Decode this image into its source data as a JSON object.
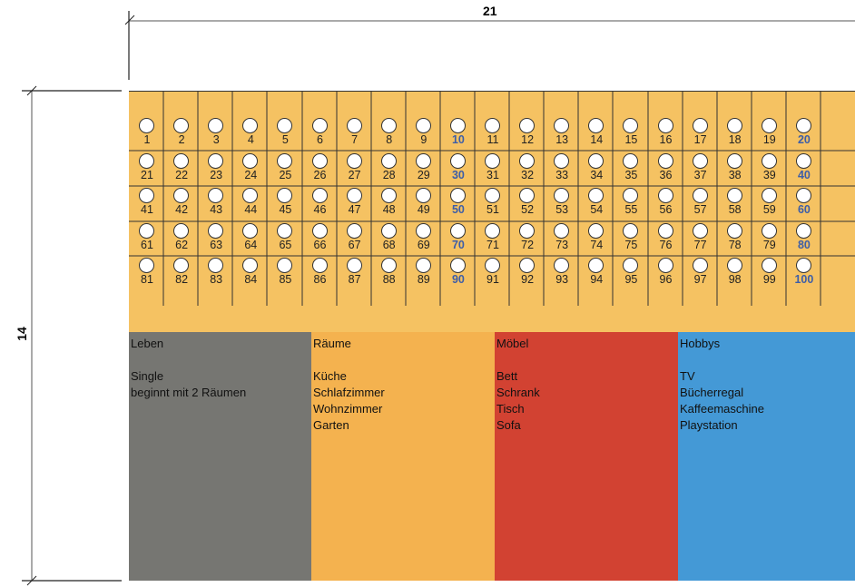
{
  "dimensions": {
    "width_label": "21",
    "height_label": "14"
  },
  "track": {
    "numbers": [
      "1",
      "2",
      "3",
      "4",
      "5",
      "6",
      "7",
      "8",
      "9",
      "10",
      "11",
      "12",
      "13",
      "14",
      "15",
      "16",
      "17",
      "18",
      "19",
      "20",
      "21",
      "22",
      "23",
      "24",
      "25",
      "26",
      "27",
      "28",
      "29",
      "30",
      "31",
      "32",
      "33",
      "34",
      "35",
      "36",
      "37",
      "38",
      "39",
      "40",
      "41",
      "42",
      "43",
      "44",
      "45",
      "46",
      "47",
      "48",
      "49",
      "50",
      "51",
      "52",
      "53",
      "54",
      "55",
      "56",
      "57",
      "58",
      "59",
      "60",
      "61",
      "62",
      "63",
      "64",
      "65",
      "66",
      "67",
      "68",
      "69",
      "70",
      "71",
      "72",
      "73",
      "74",
      "75",
      "76",
      "77",
      "78",
      "79",
      "80",
      "81",
      "82",
      "83",
      "84",
      "85",
      "86",
      "87",
      "88",
      "89",
      "90",
      "91",
      "92",
      "93",
      "94",
      "95",
      "96",
      "97",
      "98",
      "99",
      "100"
    ],
    "colors": {
      "background": "#f5c262",
      "number": "#222222",
      "decade_number": "#3d5ea8"
    }
  },
  "cards": {
    "leben": {
      "title": "Leben",
      "items": [
        "Single",
        "beginnt mit 2 Räumen"
      ],
      "color": "#767672"
    },
    "raeume": {
      "title": "Räume",
      "items": [
        "Küche",
        "Schlafzimmer",
        "Wohnzimmer",
        "Garten"
      ],
      "color": "#f4b24f"
    },
    "moebel": {
      "title": "Möbel",
      "items": [
        "Bett",
        "Schrank",
        "Tisch",
        "Sofa"
      ],
      "color": "#d24232"
    },
    "hobbys": {
      "title": "Hobbys",
      "items": [
        "TV",
        "Bücherregal",
        "Kaffeemaschine",
        "Playstation"
      ],
      "color": "#4499d6"
    }
  }
}
